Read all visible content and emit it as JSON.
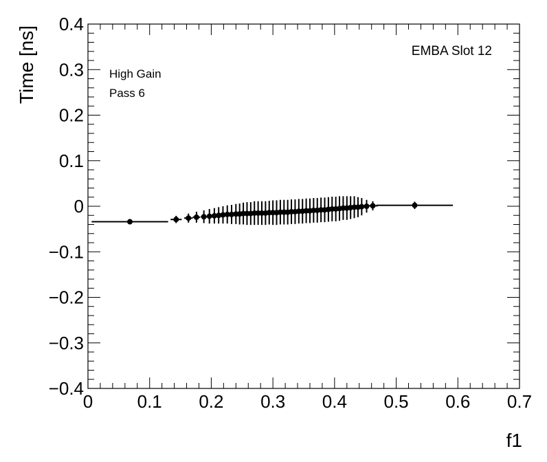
{
  "chart_data": {
    "type": "scatter",
    "title": "",
    "xlabel": "f1",
    "ylabel": "Time [ns]",
    "xlim": [
      0,
      0.7
    ],
    "ylim": [
      -0.4,
      0.4
    ],
    "xticks": [
      "0",
      "0.1",
      "0.2",
      "0.3",
      "0.4",
      "0.5",
      "0.6",
      "0.7"
    ],
    "yticks": [
      "−0.4",
      "−0.3",
      "−0.2",
      "−0.1",
      "0",
      "0.1",
      "0.2",
      "0.3",
      "0.4"
    ],
    "annotations": {
      "top_right": "EMBA Slot 12",
      "gain": "High Gain",
      "pass": "Pass 6"
    },
    "grid": false,
    "series": [
      {
        "x": [
          0.068,
          0.143,
          0.163,
          0.176,
          0.188,
          0.197,
          0.205,
          0.212,
          0.219,
          0.226,
          0.233,
          0.24,
          0.246,
          0.252,
          0.258,
          0.264,
          0.27,
          0.276,
          0.282,
          0.288,
          0.294,
          0.3,
          0.306,
          0.312,
          0.318,
          0.324,
          0.33,
          0.336,
          0.342,
          0.348,
          0.354,
          0.36,
          0.366,
          0.372,
          0.378,
          0.384,
          0.39,
          0.396,
          0.402,
          0.408,
          0.414,
          0.42,
          0.426,
          0.432,
          0.438,
          0.444,
          0.452,
          0.462,
          0.53
        ],
        "y": [
          -0.034,
          -0.029,
          -0.026,
          -0.024,
          -0.023,
          -0.022,
          -0.021,
          -0.02,
          -0.019,
          -0.018,
          -0.018,
          -0.017,
          -0.017,
          -0.016,
          -0.016,
          -0.016,
          -0.015,
          -0.015,
          -0.015,
          -0.015,
          -0.014,
          -0.014,
          -0.014,
          -0.013,
          -0.013,
          -0.013,
          -0.012,
          -0.012,
          -0.011,
          -0.011,
          -0.01,
          -0.01,
          -0.009,
          -0.009,
          -0.008,
          -0.008,
          -0.007,
          -0.006,
          -0.006,
          -0.005,
          -0.004,
          -0.004,
          -0.003,
          -0.002,
          -0.002,
          -0.001,
          0.0,
          0.001,
          0.002
        ],
        "xerr": [
          0.062,
          0.009,
          0.007,
          0.006,
          0.005,
          0.004,
          0.004,
          0.003,
          0.003,
          0.003,
          0.003,
          0.003,
          0.003,
          0.003,
          0.003,
          0.003,
          0.003,
          0.003,
          0.003,
          0.003,
          0.003,
          0.003,
          0.003,
          0.003,
          0.003,
          0.003,
          0.003,
          0.003,
          0.003,
          0.003,
          0.003,
          0.003,
          0.003,
          0.003,
          0.003,
          0.003,
          0.003,
          0.003,
          0.003,
          0.003,
          0.003,
          0.003,
          0.003,
          0.003,
          0.003,
          0.003,
          0.004,
          0.008,
          0.062
        ],
        "yerr": [
          0.004,
          0.008,
          0.01,
          0.012,
          0.014,
          0.016,
          0.017,
          0.018,
          0.019,
          0.02,
          0.021,
          0.022,
          0.023,
          0.024,
          0.025,
          0.025,
          0.026,
          0.026,
          0.026,
          0.026,
          0.026,
          0.027,
          0.027,
          0.027,
          0.027,
          0.027,
          0.027,
          0.027,
          0.027,
          0.027,
          0.027,
          0.027,
          0.027,
          0.027,
          0.027,
          0.027,
          0.027,
          0.027,
          0.027,
          0.027,
          0.026,
          0.026,
          0.025,
          0.024,
          0.022,
          0.019,
          0.014,
          0.01,
          0.008
        ]
      }
    ]
  }
}
